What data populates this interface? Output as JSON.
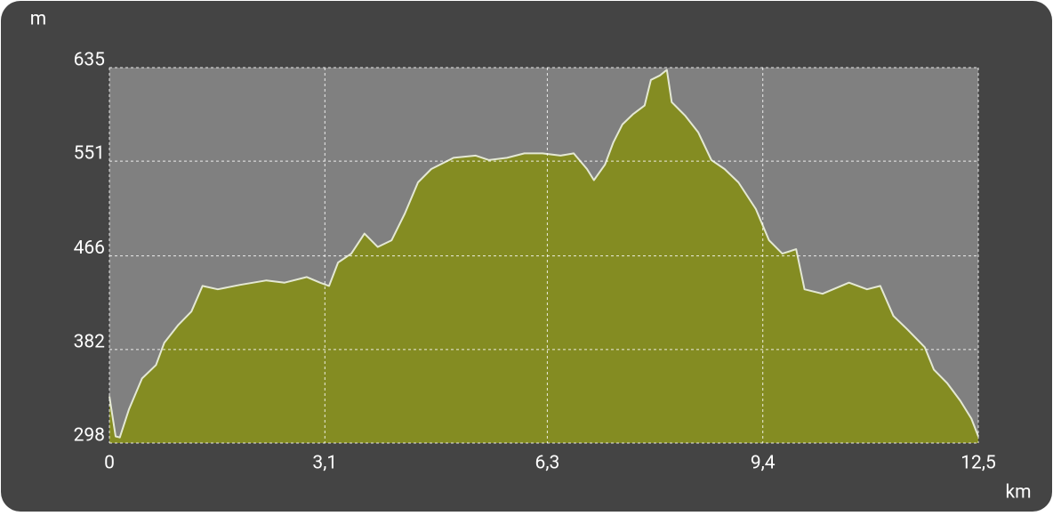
{
  "chart_data": {
    "type": "area",
    "y_label": "m",
    "x_label": "km",
    "x": [
      0,
      0.09,
      0.15,
      0.28,
      0.47,
      0.67,
      0.79,
      0.99,
      1.18,
      1.34,
      1.56,
      1.88,
      2.26,
      2.52,
      2.84,
      3.03,
      3.16,
      3.29,
      3.48,
      3.67,
      3.86,
      4.06,
      4.25,
      4.44,
      4.63,
      4.95,
      5.27,
      5.46,
      5.72,
      5.97,
      6.23,
      6.49,
      6.68,
      6.87,
      6.97,
      7.13,
      7.25,
      7.38,
      7.53,
      7.7,
      7.79,
      7.92,
      8.02,
      8.09,
      8.28,
      8.47,
      8.66,
      8.85,
      9.05,
      9.3,
      9.49,
      9.68,
      9.88,
      10.0,
      10.26,
      10.64,
      10.9,
      11.09,
      11.28,
      11.48,
      11.73,
      11.86,
      12.05,
      12.24,
      12.4,
      12.5
    ],
    "series": [
      {
        "fill_color": "#848c22",
        "line_color": "#e4e8d4",
        "values": [
          340,
          304,
          303,
          328,
          356,
          368,
          388,
          404,
          416,
          439,
          436,
          440,
          444,
          442,
          447,
          442,
          439,
          460,
          468,
          486,
          474,
          480,
          504,
          532,
          544,
          554,
          556,
          552,
          554,
          558,
          558,
          556,
          558,
          544,
          534,
          548,
          568,
          584,
          593,
          601,
          624,
          628,
          633,
          604,
          592,
          577,
          552,
          544,
          532,
          508,
          480,
          468,
          472,
          436,
          432,
          442,
          436,
          439,
          412,
          400,
          384,
          364,
          352,
          336,
          320,
          304
        ]
      }
    ],
    "xlim": [
      0,
      12.5
    ],
    "xticks": [
      0,
      {
        "value": 3.1,
        "label": "3,1"
      },
      {
        "value": 6.3,
        "label": "6,3"
      },
      {
        "value": 9.4,
        "label": "9,4"
      },
      {
        "value": 12.5,
        "label": "12,5"
      }
    ],
    "ylim": [
      298,
      635
    ],
    "yticks": [
      298,
      382,
      466,
      551,
      635
    ],
    "grid": true
  }
}
